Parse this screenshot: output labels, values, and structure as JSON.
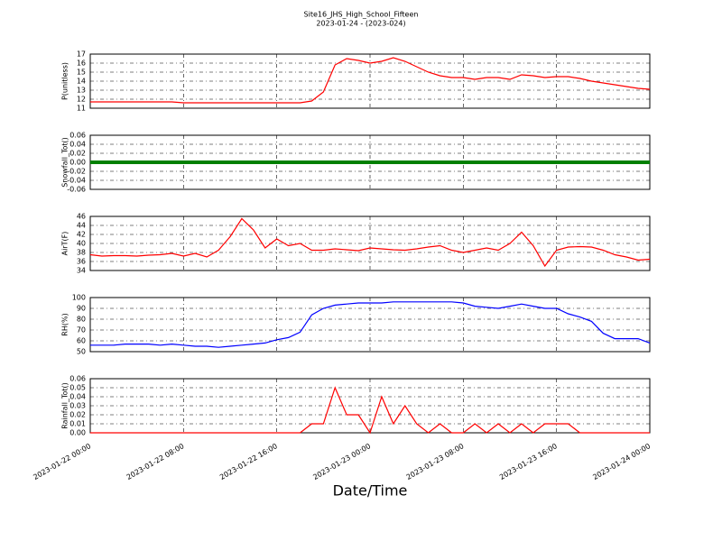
{
  "title": "Site16_JHS_High_School_Fifteen",
  "subtitle": "2023-01-24 - (2023-024)",
  "xlabel": "Date/Time",
  "chart_data": [
    {
      "type": "line",
      "ylabel": "P(unitless)",
      "color": "#ff0000",
      "ylim": [
        11,
        17
      ],
      "yticks": [
        11,
        12,
        13,
        14,
        15,
        16,
        17
      ],
      "grid": true,
      "xlim": [
        "2023-01-22 00:00",
        "2023-01-24 00:00"
      ],
      "xticks": [
        "2023-01-22 00:00",
        "2023-01-22 08:00",
        "2023-01-22 16:00",
        "2023-01-23 00:00",
        "2023-01-23 08:00",
        "2023-01-23 16:00",
        "2023-01-24 00:00"
      ],
      "x": [
        "2023-01-22 00:00",
        "2023-01-22 01:00",
        "2023-01-22 02:00",
        "2023-01-22 03:00",
        "2023-01-22 04:00",
        "2023-01-22 05:00",
        "2023-01-22 06:00",
        "2023-01-22 07:00",
        "2023-01-22 08:00",
        "2023-01-22 09:00",
        "2023-01-22 10:00",
        "2023-01-22 11:00",
        "2023-01-22 12:00",
        "2023-01-22 13:00",
        "2023-01-22 14:00",
        "2023-01-22 15:00",
        "2023-01-22 16:00",
        "2023-01-22 17:00",
        "2023-01-22 18:00",
        "2023-01-22 19:00",
        "2023-01-22 20:00",
        "2023-01-22 21:00",
        "2023-01-22 22:00",
        "2023-01-22 23:00",
        "2023-01-23 00:00",
        "2023-01-23 01:00",
        "2023-01-23 02:00",
        "2023-01-23 03:00",
        "2023-01-23 04:00",
        "2023-01-23 05:00",
        "2023-01-23 06:00",
        "2023-01-23 07:00",
        "2023-01-23 08:00",
        "2023-01-23 09:00",
        "2023-01-23 10:00",
        "2023-01-23 11:00",
        "2023-01-23 12:00",
        "2023-01-23 13:00",
        "2023-01-23 14:00",
        "2023-01-23 15:00",
        "2023-01-23 16:00",
        "2023-01-23 17:00",
        "2023-01-23 18:00",
        "2023-01-23 19:00",
        "2023-01-23 20:00",
        "2023-01-23 21:00",
        "2023-01-23 22:00",
        "2023-01-23 23:00",
        "2023-01-24 00:00"
      ],
      "values": [
        11.7,
        11.7,
        11.7,
        11.7,
        11.7,
        11.7,
        11.7,
        11.7,
        11.6,
        11.6,
        11.6,
        11.6,
        11.6,
        11.6,
        11.6,
        11.6,
        11.6,
        11.6,
        11.6,
        11.8,
        12.8,
        15.8,
        16.5,
        16.3,
        16.0,
        16.2,
        16.6,
        16.2,
        15.6,
        15.0,
        14.6,
        14.4,
        14.4,
        14.2,
        14.4,
        14.4,
        14.2,
        14.7,
        14.6,
        14.4,
        14.5,
        14.5,
        14.3,
        14.0,
        13.8,
        13.6,
        13.4,
        13.2,
        13.1
      ]
    },
    {
      "type": "line",
      "ylabel": "Snowfall_Tot()",
      "color": "#008000",
      "ylim": [
        -0.06,
        0.06
      ],
      "yticks": [
        -0.06,
        -0.04,
        -0.02,
        {
          "value": 0,
          "label": "0.00"
        },
        0.02,
        0.04,
        0.06
      ],
      "grid": true,
      "xlim": [
        "2023-01-22 00:00",
        "2023-01-24 00:00"
      ],
      "xticks": [
        "2023-01-22 00:00",
        "2023-01-22 08:00",
        "2023-01-22 16:00",
        "2023-01-23 00:00",
        "2023-01-23 08:00",
        "2023-01-23 16:00",
        "2023-01-24 00:00"
      ],
      "x": [
        "2023-01-22 00:00",
        "2023-01-22 01:00",
        "2023-01-22 02:00",
        "2023-01-22 03:00",
        "2023-01-22 04:00",
        "2023-01-22 05:00",
        "2023-01-22 06:00",
        "2023-01-22 07:00",
        "2023-01-22 08:00",
        "2023-01-22 09:00",
        "2023-01-22 10:00",
        "2023-01-22 11:00",
        "2023-01-22 12:00",
        "2023-01-22 13:00",
        "2023-01-22 14:00",
        "2023-01-22 15:00",
        "2023-01-22 16:00",
        "2023-01-22 17:00",
        "2023-01-22 18:00",
        "2023-01-22 19:00",
        "2023-01-22 20:00",
        "2023-01-22 21:00",
        "2023-01-22 22:00",
        "2023-01-22 23:00",
        "2023-01-23 00:00",
        "2023-01-23 01:00",
        "2023-01-23 02:00",
        "2023-01-23 03:00",
        "2023-01-23 04:00",
        "2023-01-23 05:00",
        "2023-01-23 06:00",
        "2023-01-23 07:00",
        "2023-01-23 08:00",
        "2023-01-23 09:00",
        "2023-01-23 10:00",
        "2023-01-23 11:00",
        "2023-01-23 12:00",
        "2023-01-23 13:00",
        "2023-01-23 14:00",
        "2023-01-23 15:00",
        "2023-01-23 16:00",
        "2023-01-23 17:00",
        "2023-01-23 18:00",
        "2023-01-23 19:00",
        "2023-01-23 20:00",
        "2023-01-23 21:00",
        "2023-01-23 22:00",
        "2023-01-23 23:00",
        "2023-01-24 00:00"
      ],
      "values": [
        0,
        0,
        0,
        0,
        0,
        0,
        0,
        0,
        0,
        0,
        0,
        0,
        0,
        0,
        0,
        0,
        0,
        0,
        0,
        0,
        0,
        0,
        0,
        0,
        0,
        0,
        0,
        0,
        0,
        0,
        0,
        0,
        0,
        0,
        0,
        0,
        0,
        0,
        0,
        0,
        0,
        0,
        0,
        0,
        0,
        0,
        0,
        0,
        0
      ]
    },
    {
      "type": "line",
      "ylabel": "AirT(F)",
      "color": "#ff0000",
      "ylim": [
        34,
        46
      ],
      "yticks": [
        34,
        36,
        38,
        40,
        42,
        44,
        46
      ],
      "grid": true,
      "xlim": [
        "2023-01-22 00:00",
        "2023-01-24 00:00"
      ],
      "xticks": [
        "2023-01-22 00:00",
        "2023-01-22 08:00",
        "2023-01-22 16:00",
        "2023-01-23 00:00",
        "2023-01-23 08:00",
        "2023-01-23 16:00",
        "2023-01-24 00:00"
      ],
      "x": [
        "2023-01-22 00:00",
        "2023-01-22 01:00",
        "2023-01-22 02:00",
        "2023-01-22 03:00",
        "2023-01-22 04:00",
        "2023-01-22 05:00",
        "2023-01-22 06:00",
        "2023-01-22 07:00",
        "2023-01-22 08:00",
        "2023-01-22 09:00",
        "2023-01-22 10:00",
        "2023-01-22 11:00",
        "2023-01-22 12:00",
        "2023-01-22 13:00",
        "2023-01-22 14:00",
        "2023-01-22 15:00",
        "2023-01-22 16:00",
        "2023-01-22 17:00",
        "2023-01-22 18:00",
        "2023-01-22 19:00",
        "2023-01-22 20:00",
        "2023-01-22 21:00",
        "2023-01-22 22:00",
        "2023-01-22 23:00",
        "2023-01-23 00:00",
        "2023-01-23 01:00",
        "2023-01-23 02:00",
        "2023-01-23 03:00",
        "2023-01-23 04:00",
        "2023-01-23 05:00",
        "2023-01-23 06:00",
        "2023-01-23 07:00",
        "2023-01-23 08:00",
        "2023-01-23 09:00",
        "2023-01-23 10:00",
        "2023-01-23 11:00",
        "2023-01-23 12:00",
        "2023-01-23 13:00",
        "2023-01-23 14:00",
        "2023-01-23 15:00",
        "2023-01-23 16:00",
        "2023-01-23 17:00",
        "2023-01-23 18:00",
        "2023-01-23 19:00",
        "2023-01-23 20:00",
        "2023-01-23 21:00",
        "2023-01-23 22:00",
        "2023-01-23 23:00",
        "2023-01-24 00:00"
      ],
      "values": [
        37.5,
        37.2,
        37.3,
        37.3,
        37.2,
        37.4,
        37.5,
        37.8,
        37.2,
        37.8,
        37.0,
        38.5,
        41.5,
        45.5,
        43.0,
        39.0,
        41.0,
        39.5,
        40.0,
        38.5,
        38.5,
        38.8,
        38.6,
        38.4,
        39.0,
        38.8,
        38.6,
        38.5,
        38.8,
        39.2,
        39.5,
        38.5,
        38.0,
        38.5,
        39.0,
        38.5,
        40.0,
        42.5,
        39.5,
        35.0,
        38.5,
        39.2,
        39.3,
        39.2,
        38.5,
        37.5,
        37.0,
        36.3,
        36.5
      ]
    },
    {
      "type": "line",
      "ylabel": "RH(%)",
      "color": "#0000ff",
      "ylim": [
        50,
        100
      ],
      "yticks": [
        50,
        60,
        70,
        80,
        90,
        100
      ],
      "grid": true,
      "xlim": [
        "2023-01-22 00:00",
        "2023-01-24 00:00"
      ],
      "xticks": [
        "2023-01-22 00:00",
        "2023-01-22 08:00",
        "2023-01-22 16:00",
        "2023-01-23 00:00",
        "2023-01-23 08:00",
        "2023-01-23 16:00",
        "2023-01-24 00:00"
      ],
      "x": [
        "2023-01-22 00:00",
        "2023-01-22 01:00",
        "2023-01-22 02:00",
        "2023-01-22 03:00",
        "2023-01-22 04:00",
        "2023-01-22 05:00",
        "2023-01-22 06:00",
        "2023-01-22 07:00",
        "2023-01-22 08:00",
        "2023-01-22 09:00",
        "2023-01-22 10:00",
        "2023-01-22 11:00",
        "2023-01-22 12:00",
        "2023-01-22 13:00",
        "2023-01-22 14:00",
        "2023-01-22 15:00",
        "2023-01-22 16:00",
        "2023-01-22 17:00",
        "2023-01-22 18:00",
        "2023-01-22 19:00",
        "2023-01-22 20:00",
        "2023-01-22 21:00",
        "2023-01-22 22:00",
        "2023-01-22 23:00",
        "2023-01-23 00:00",
        "2023-01-23 01:00",
        "2023-01-23 02:00",
        "2023-01-23 03:00",
        "2023-01-23 04:00",
        "2023-01-23 05:00",
        "2023-01-23 06:00",
        "2023-01-23 07:00",
        "2023-01-23 08:00",
        "2023-01-23 09:00",
        "2023-01-23 10:00",
        "2023-01-23 11:00",
        "2023-01-23 12:00",
        "2023-01-23 13:00",
        "2023-01-23 14:00",
        "2023-01-23 15:00",
        "2023-01-23 16:00",
        "2023-01-23 17:00",
        "2023-01-23 18:00",
        "2023-01-23 19:00",
        "2023-01-23 20:00",
        "2023-01-23 21:00",
        "2023-01-23 22:00",
        "2023-01-23 23:00",
        "2023-01-24 00:00"
      ],
      "values": [
        56,
        56,
        56,
        57,
        57,
        57,
        56,
        57,
        56,
        55,
        55,
        54,
        55,
        56,
        57,
        58,
        61,
        63,
        68,
        84,
        90,
        93,
        94,
        95,
        95,
        95,
        96,
        96,
        96,
        96,
        96,
        96,
        95,
        92,
        91,
        90,
        92,
        94,
        92,
        90,
        90,
        85,
        82,
        78,
        67,
        62,
        62,
        62,
        58
      ]
    },
    {
      "type": "line",
      "ylabel": "Rainfall_Tot()",
      "color": "#ff0000",
      "ylim": [
        0,
        0.06
      ],
      "yticks": [
        {
          "value": 0,
          "label": "0.00"
        },
        0.01,
        0.02,
        0.03,
        0.04,
        0.05,
        0.06
      ],
      "grid": true,
      "xlim": [
        "2023-01-22 00:00",
        "2023-01-24 00:00"
      ],
      "xticks": [
        "2023-01-22 00:00",
        "2023-01-22 08:00",
        "2023-01-22 16:00",
        "2023-01-23 00:00",
        "2023-01-23 08:00",
        "2023-01-23 16:00",
        "2023-01-24 00:00"
      ],
      "x": [
        "2023-01-22 00:00",
        "2023-01-22 01:00",
        "2023-01-22 02:00",
        "2023-01-22 03:00",
        "2023-01-22 04:00",
        "2023-01-22 05:00",
        "2023-01-22 06:00",
        "2023-01-22 07:00",
        "2023-01-22 08:00",
        "2023-01-22 09:00",
        "2023-01-22 10:00",
        "2023-01-22 11:00",
        "2023-01-22 12:00",
        "2023-01-22 13:00",
        "2023-01-22 14:00",
        "2023-01-22 15:00",
        "2023-01-22 16:00",
        "2023-01-22 17:00",
        "2023-01-22 18:00",
        "2023-01-22 19:00",
        "2023-01-22 20:00",
        "2023-01-22 21:00",
        "2023-01-22 22:00",
        "2023-01-22 23:00",
        "2023-01-23 00:00",
        "2023-01-23 01:00",
        "2023-01-23 02:00",
        "2023-01-23 03:00",
        "2023-01-23 04:00",
        "2023-01-23 05:00",
        "2023-01-23 06:00",
        "2023-01-23 07:00",
        "2023-01-23 08:00",
        "2023-01-23 09:00",
        "2023-01-23 10:00",
        "2023-01-23 11:00",
        "2023-01-23 12:00",
        "2023-01-23 13:00",
        "2023-01-23 14:00",
        "2023-01-23 15:00",
        "2023-01-23 16:00",
        "2023-01-23 17:00",
        "2023-01-23 18:00",
        "2023-01-23 19:00",
        "2023-01-23 20:00",
        "2023-01-23 21:00",
        "2023-01-23 22:00",
        "2023-01-23 23:00",
        "2023-01-24 00:00"
      ],
      "values": [
        0,
        0,
        0,
        0,
        0,
        0,
        0,
        0,
        0,
        0,
        0,
        0,
        0,
        0,
        0,
        0,
        0,
        0,
        0,
        0.01,
        0.01,
        0.05,
        0.02,
        0.02,
        0,
        0.04,
        0.01,
        0.03,
        0.01,
        0,
        0.01,
        0,
        0,
        0.01,
        0,
        0.01,
        0,
        0.01,
        0,
        0.01,
        0.01,
        0.01,
        0,
        0,
        0,
        0,
        0,
        0,
        0
      ]
    }
  ]
}
